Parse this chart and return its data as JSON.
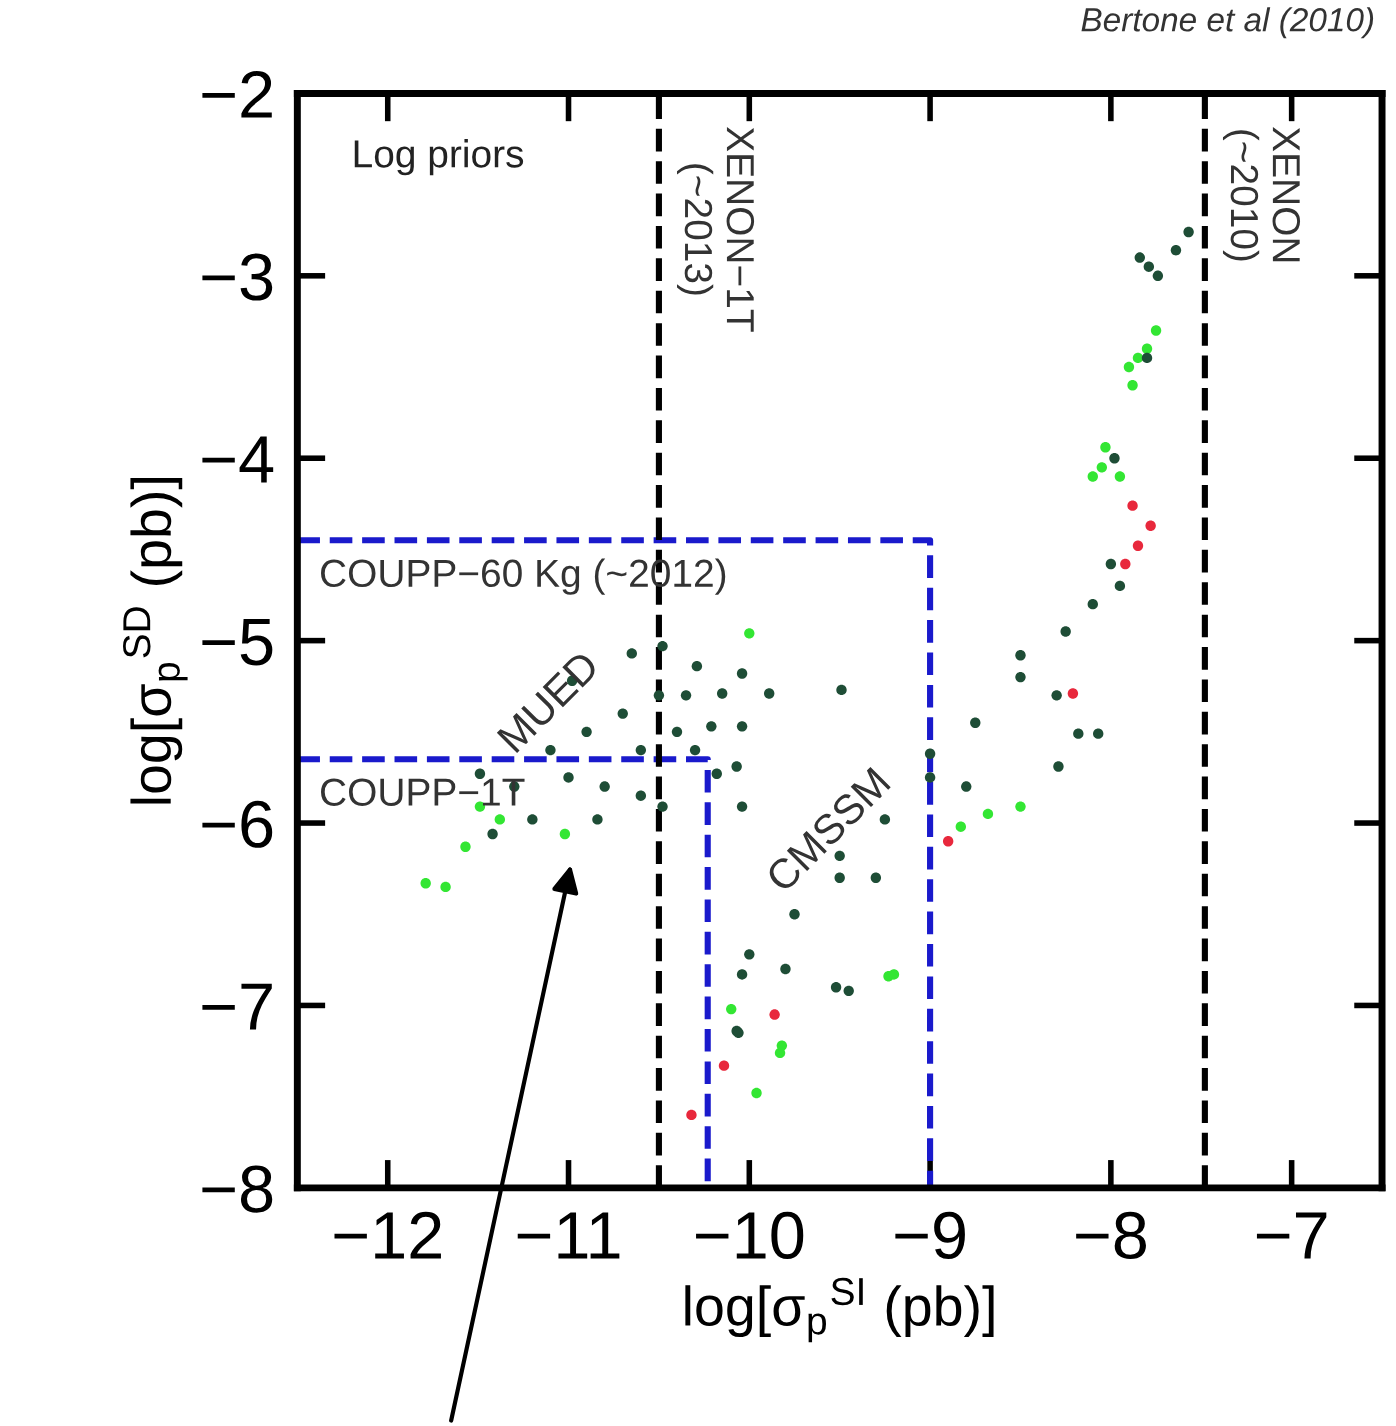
{
  "chart_data": {
    "type": "scatter",
    "xlabel": "log[σ$_{p}$$^{SI}$ (pb)]",
    "ylabel": "log[σ$_{p}$$^{SD}$ (pb)]",
    "xlim": [
      -12.5,
      -6.5
    ],
    "ylim": [
      -8,
      -2
    ],
    "xticks": [
      -12,
      -11,
      -10,
      -9,
      -8,
      -7
    ],
    "yticks": [
      -8,
      -7,
      -6,
      -5,
      -4,
      -3,
      -2
    ],
    "grid": false,
    "legend": false,
    "marker": "circle",
    "annotations": [
      "Bertone et al (2010)",
      "Log priors",
      "MUED",
      "CMSSM"
    ],
    "ref_lines": [
      {
        "axis": "x",
        "value": -10.5,
        "label": "XENON−1T\n(~2013)",
        "color": "#000000",
        "line_style": "dashed"
      },
      {
        "axis": "x",
        "value": -7.48,
        "label": "XENON\n(~2010)",
        "color": "#000000",
        "line_style": "dashed"
      }
    ],
    "series": [
      {
        "type": "line",
        "name": "COUPP−60 Kg (~2012)",
        "color": "#1a1acc",
        "line_style": "dashed",
        "marker": "none",
        "x": [
          -12.5,
          -9.0,
          -9.0
        ],
        "values": [
          -4.45,
          -4.45,
          -8
        ]
      },
      {
        "type": "line",
        "name": "COUPP−1T",
        "color": "#1a1acc",
        "line_style": "dashed",
        "marker": "none",
        "x": [
          -12.5,
          -10.23,
          -10.23
        ],
        "values": [
          -5.65,
          -5.65,
          -8
        ]
      },
      {
        "color": "#33e633",
        "x": [
          -11.68,
          -11.79,
          -11.57,
          -11.38,
          -11.49,
          -11.02,
          -10.0,
          -9.96,
          -9.83,
          -9.23,
          -10.1,
          -8.68,
          -8.5,
          -9.82,
          -9.2,
          -8.83,
          -7.85,
          -7.9,
          -7.8,
          -7.75,
          -7.88,
          -8.03,
          -8.05,
          -7.95,
          -8.1
        ],
        "values": [
          -6.35,
          -6.33,
          -6.13,
          -5.98,
          -5.91,
          -6.06,
          -4.96,
          -7.48,
          -7.26,
          -6.84,
          -7.02,
          -5.95,
          -5.91,
          -7.22,
          -6.83,
          -6.02,
          -3.45,
          -3.5,
          -3.4,
          -3.3,
          -3.6,
          -3.94,
          -4.05,
          -4.1,
          -4.1
        ]
      },
      {
        "color": "#1e4d36",
        "x": [
          -11.49,
          -10.98,
          -10.65,
          -10.48,
          -10.29,
          -10.21,
          -10.18,
          -10.48,
          -10.84,
          -11.2,
          -11.42,
          -11.1,
          -10.9,
          -10.7,
          -10.6,
          -10.5,
          -10.4,
          -10.8,
          -11.0,
          -10.6,
          -11.3,
          -10.3,
          -10.35,
          -10.04,
          -10.04,
          -10.15,
          -9.89,
          -9.49,
          -10.04,
          -10.07,
          -10.04,
          -10.0,
          -9.5,
          -9.0,
          -8.5,
          -8.0,
          -9.8,
          -9.3,
          -8.8,
          -8.3,
          -7.95,
          -9.75,
          -9.25,
          -8.75,
          -8.25,
          -9.5,
          -9.0,
          -8.5,
          -8.1,
          -7.84,
          -7.74,
          -7.64,
          -7.57,
          -7.79,
          -7.8,
          -7.98,
          -8.18,
          -8.07,
          -8.29,
          -9.52,
          -10.07,
          -9.45,
          -10.06
        ],
        "values": [
          -5.73,
          -5.22,
          -5.07,
          -5.03,
          -5.14,
          -5.47,
          -5.73,
          -5.91,
          -5.98,
          -5.98,
          -6.06,
          -5.6,
          -5.5,
          -5.4,
          -5.6,
          -5.3,
          -5.5,
          -5.8,
          -5.75,
          -5.85,
          -5.8,
          -5.6,
          -5.3,
          -5.18,
          -5.47,
          -5.29,
          -5.29,
          -5.27,
          -5.91,
          -5.69,
          -6.83,
          -6.72,
          -6.18,
          -5.62,
          -5.08,
          -4.58,
          -6.8,
          -6.3,
          -5.8,
          -5.3,
          -4.7,
          -6.5,
          -5.98,
          -5.45,
          -4.95,
          -6.3,
          -5.75,
          -5.2,
          -4.8,
          -2.9,
          -3.0,
          -2.86,
          -2.76,
          -2.95,
          -3.45,
          -4.0,
          -5.51,
          -5.51,
          -5.69,
          -6.9,
          -7.14,
          -6.92,
          -7.15
        ]
      },
      {
        "color": "#e8283c",
        "x": [
          -7.88,
          -7.78,
          -7.85,
          -7.92,
          -8.21,
          -8.9,
          -9.86,
          -10.14,
          -10.32
        ],
        "values": [
          -4.26,
          -4.37,
          -4.48,
          -4.58,
          -5.29,
          -6.1,
          -7.05,
          -7.33,
          -7.6
        ]
      }
    ]
  }
}
